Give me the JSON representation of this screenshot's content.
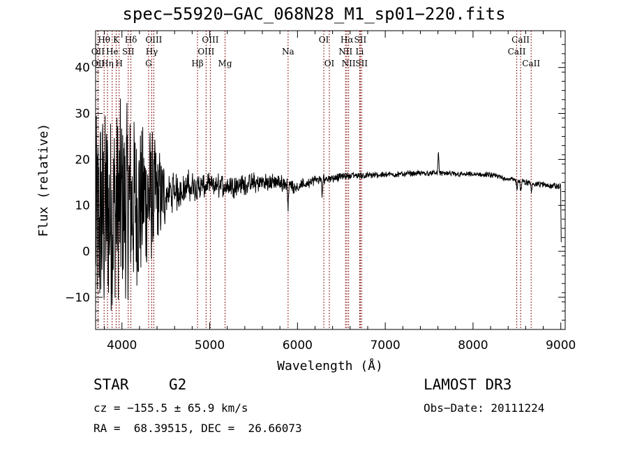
{
  "chart_data": {
    "type": "line",
    "title": "spec−55920−GAC_068N28_M1_sp01−220.fits",
    "xlabel": "Wavelength (Å)",
    "ylabel": "Flux (relative)",
    "xlim": [
      3700,
      9050
    ],
    "ylim": [
      -17,
      48
    ],
    "xticks": [
      4000,
      5000,
      6000,
      7000,
      8000,
      9000
    ],
    "yticks": [
      -10,
      0,
      10,
      20,
      30,
      40
    ],
    "ytick_labels": [
      "−10",
      "0",
      "10",
      "20",
      "30",
      "40"
    ],
    "line_color": "#000000",
    "marker_color": "#8b1a1a",
    "lines": [
      {
        "name": "Hθ",
        "wave": 3797,
        "row": 0
      },
      {
        "name": "OII",
        "wave": 3727,
        "row": 1
      },
      {
        "name": "OII",
        "wave": 3729,
        "row": 2
      },
      {
        "name": "Hη",
        "wave": 3835,
        "row": 2
      },
      {
        "name": "K",
        "wave": 3934,
        "row": 0
      },
      {
        "name": "He",
        "wave": 3889,
        "row": 1
      },
      {
        "name": "H",
        "wave": 3968,
        "row": 2
      },
      {
        "name": "Hδ",
        "wave": 4102,
        "row": 0
      },
      {
        "name": "SII",
        "wave": 4072,
        "row": 1
      },
      {
        "name": "OIII",
        "wave": 4363,
        "row": 0
      },
      {
        "name": "Hγ",
        "wave": 4340,
        "row": 1
      },
      {
        "name": "G",
        "wave": 4304,
        "row": 2
      },
      {
        "name": "Hβ",
        "wave": 4861,
        "row": 2
      },
      {
        "name": "OIII",
        "wave": 5007,
        "row": 0
      },
      {
        "name": "OIII",
        "wave": 4959,
        "row": 1
      },
      {
        "name": "Mg",
        "wave": 5175,
        "row": 2
      },
      {
        "name": "Na",
        "wave": 5893,
        "row": 1
      },
      {
        "name": "OI",
        "wave": 6300,
        "row": 0
      },
      {
        "name": "OI",
        "wave": 6363,
        "row": 2
      },
      {
        "name": "Hα",
        "wave": 6563,
        "row": 0
      },
      {
        "name": "NII",
        "wave": 6548,
        "row": 1
      },
      {
        "name": "NII",
        "wave": 6583,
        "row": 2
      },
      {
        "name": "SII",
        "wave": 6716,
        "row": 0
      },
      {
        "name": "Li",
        "wave": 6708,
        "row": 1
      },
      {
        "name": "SII",
        "wave": 6731,
        "row": 2
      },
      {
        "name": "CaII",
        "wave": 8542,
        "row": 0
      },
      {
        "name": "CaII",
        "wave": 8498,
        "row": 1
      },
      {
        "name": "CaII",
        "wave": 8662,
        "row": 2
      }
    ],
    "spectrum_profile": [
      [
        3700,
        5
      ],
      [
        3800,
        8
      ],
      [
        4000,
        10
      ],
      [
        4200,
        11
      ],
      [
        4400,
        12
      ],
      [
        4600,
        13
      ],
      [
        4800,
        14
      ],
      [
        5000,
        14.2
      ],
      [
        5200,
        14.3
      ],
      [
        5400,
        14.5
      ],
      [
        5600,
        15
      ],
      [
        5800,
        15
      ],
      [
        6000,
        14
      ],
      [
        6200,
        15.5
      ],
      [
        6400,
        16
      ],
      [
        6600,
        16.5
      ],
      [
        6800,
        16.5
      ],
      [
        7000,
        16.7
      ],
      [
        7200,
        16.8
      ],
      [
        7400,
        17
      ],
      [
        7600,
        17
      ],
      [
        7800,
        16.8
      ],
      [
        8000,
        16.7
      ],
      [
        8200,
        16.6
      ],
      [
        8400,
        15.8
      ],
      [
        8600,
        15
      ],
      [
        8800,
        14.5
      ],
      [
        9000,
        14
      ]
    ],
    "spectrum_noise": [
      [
        3700,
        22
      ],
      [
        4000,
        20
      ],
      [
        4300,
        14
      ],
      [
        4500,
        6
      ],
      [
        5000,
        3.5
      ],
      [
        5500,
        3
      ],
      [
        6000,
        1.8
      ],
      [
        6500,
        1.2
      ],
      [
        7000,
        0.9
      ],
      [
        8000,
        0.8
      ],
      [
        9000,
        1
      ]
    ],
    "spectrum_features": [
      {
        "wave": 5893,
        "depth": -5
      },
      {
        "wave": 6280,
        "depth": -4
      },
      {
        "wave": 7605,
        "depth": 5
      },
      {
        "wave": 8500,
        "depth": -2
      },
      {
        "wave": 8545,
        "depth": -2.5
      },
      {
        "wave": 8665,
        "depth": -2
      }
    ]
  },
  "info": {
    "object_class": "STAR",
    "subclass": "G2",
    "survey": "LAMOST DR3",
    "redshift_line": "cz = −155.5 ± 65.9 km/s",
    "obs_date": "Obs−Date: 20111224",
    "coords": "RA =  68.39515, DEC =  26.66073"
  }
}
